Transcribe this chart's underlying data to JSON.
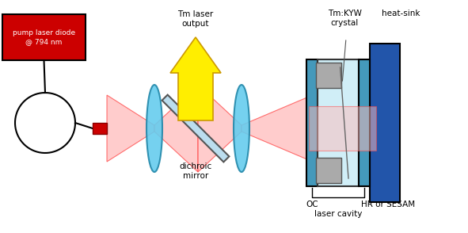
{
  "bg_color": "#ffffff",
  "fig_width": 5.91,
  "fig_height": 2.94,
  "beam_color": "#ff4444",
  "beam_fill_color": "#ffbbbb",
  "labels": {
    "pump_label": "pump laser diode\n@ 794 nm",
    "output_label": "Tm laser\noutput",
    "crystal_label": "Tm:KYW\ncrystal",
    "heatsink_label": "heat-sink",
    "dichroic_label": "dichroic\nmirror",
    "oc_label": "OC",
    "hr_label": "HR or SESAM",
    "cavity_label": "laser cavity"
  }
}
